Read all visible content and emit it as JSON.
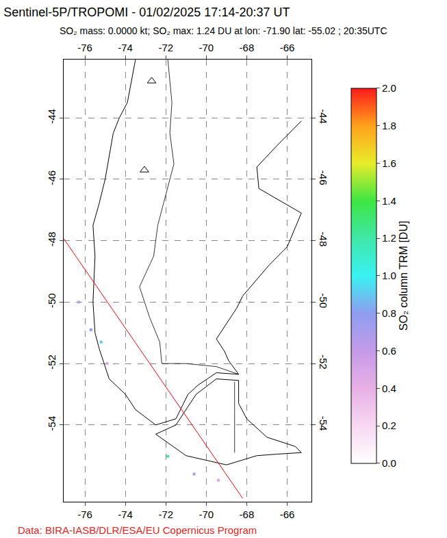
{
  "chart_data": {
    "type": "map",
    "title": "Sentinel-5P/TROPOMI - 01/02/2025 17:14-20:37 UT",
    "subtitle": "SO₂ mass: 0.0000 kt; SO₂ max: 1.24 DU at lon: -71.90 lat: -55.02 ; 20:35UTC",
    "footer": "Data: BIRA-IASB/DLR/ESA/EU Copernicus Program",
    "xlim": [
      -77.05,
      -64.8
    ],
    "ylim": [
      -56.5,
      -42.1
    ],
    "xticks": [
      -76,
      -74,
      -72,
      -70,
      -68,
      -66
    ],
    "yticks": [
      -44,
      -46,
      -48,
      -50,
      -52,
      -54
    ],
    "grid": true,
    "colorbar": {
      "title": "SO₂ column TRM [DU]",
      "range": [
        0,
        2
      ],
      "ticks": [
        {
          "value": 0,
          "label": "0.0"
        },
        0.2,
        0.4,
        0.6,
        0.8,
        {
          "value": 1,
          "label": "1.0"
        },
        1.2,
        1.4,
        1.6,
        1.8,
        {
          "value": 2,
          "label": "2.0"
        }
      ]
    },
    "swath_edge": {
      "color": "#ff0000",
      "lon": [
        -77.05,
        -68.2
      ],
      "lat": [
        -47.93,
        -56.39
      ]
    },
    "coastlines": [
      {
        "lon": [
          -73.5,
          -73.9,
          -74.3,
          -74.6,
          -75.0,
          -75.3,
          -75.6,
          -75.5,
          -75.6,
          -75.5,
          -75.3,
          -74.8,
          -74.0,
          -73.5,
          -72.5,
          -71.5,
          -71.2,
          -70.9,
          -70.4,
          -69.5,
          -68.4,
          -68.9,
          -69.1,
          -69.5,
          -68.5,
          -68.2,
          -66.9,
          -66.0,
          -65.3,
          -67.4,
          -67.5,
          -66.5,
          -65.3
        ],
        "lat": [
          -42.1,
          -43.5,
          -44.0,
          -44.5,
          -46.0,
          -46.8,
          -47.5,
          -48.5,
          -50.0,
          -51.0,
          -51.5,
          -52.5,
          -53.0,
          -53.5,
          -54.0,
          -53.8,
          -53.4,
          -53.0,
          -52.7,
          -52.3,
          -52.35,
          -51.9,
          -51.6,
          -51.2,
          -50.2,
          -49.8,
          -48.8,
          -48.2,
          -47.1,
          -46.3,
          -45.6,
          -44.9,
          -44.1
        ]
      },
      {
        "lon": [
          -68.4,
          -69.5,
          -70.5,
          -71.5,
          -72.5,
          -71.0,
          -69.0,
          -67.5,
          -66.5,
          -65.3,
          -65.6,
          -67.0,
          -68.0,
          -68.4,
          -68.4
        ],
        "lat": [
          -52.55,
          -52.5,
          -53.0,
          -54.0,
          -54.3,
          -55.0,
          -55.3,
          -55.0,
          -54.95,
          -54.9,
          -54.7,
          -54.4,
          -53.8,
          -53.3,
          -52.55
        ]
      }
    ],
    "borders": [
      {
        "lon": [
          -71.9,
          -71.7,
          -71.8,
          -71.6,
          -72.0,
          -72.4,
          -72.6,
          -73.3,
          -72.8,
          -72.3,
          -72.2,
          -71.0,
          -69.5,
          -68.4
        ],
        "lat": [
          -42.1,
          -43.5,
          -44.5,
          -45.5,
          -46.5,
          -47.5,
          -48.5,
          -49.5,
          -50.5,
          -51.3,
          -52.0,
          -52.0,
          -52.1,
          -52.35
        ]
      },
      {
        "lon": [
          -68.6,
          -68.6
        ],
        "lat": [
          -52.6,
          -54.9
        ]
      }
    ],
    "volcanoes": {
      "marker": "triangle-up-open",
      "lon": [
        -72.7,
        -73.06
      ],
      "lat": [
        -42.8,
        -45.7
      ]
    },
    "so2_pixels": {
      "lon": [
        -76.3,
        -75.7,
        -75.2,
        -74.9,
        -71.9,
        -70.6,
        -69.4
      ],
      "lat": [
        -50.0,
        -50.9,
        -51.3,
        -52.0,
        -55.02,
        -55.6,
        -55.8
      ],
      "values": [
        0.6,
        0.8,
        0.9,
        0.5,
        1.24,
        0.7,
        0.5
      ]
    }
  }
}
